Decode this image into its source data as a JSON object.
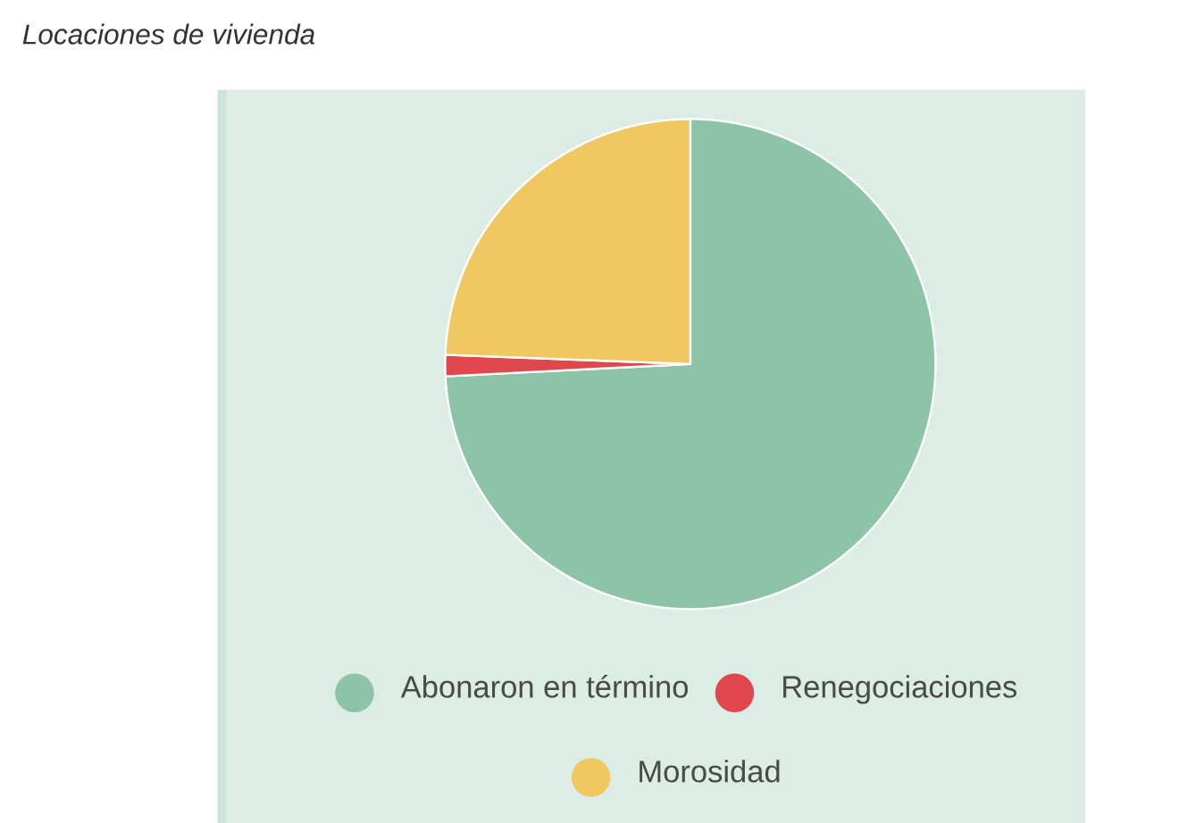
{
  "chart_data": {
    "type": "pie",
    "title": "Locaciones de vivienda",
    "categories": [
      "Abonaron en término",
      "Renegociaciones",
      "Morosidad"
    ],
    "values": [
      74.2,
      1.4,
      24.4
    ],
    "colors": [
      "#8dc3a7",
      "#e0474c",
      "#f0c862"
    ],
    "legend": "bottom"
  }
}
